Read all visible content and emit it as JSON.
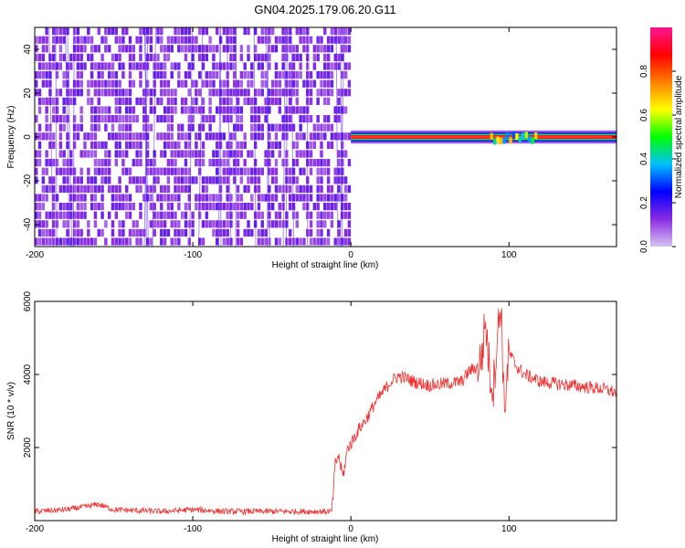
{
  "figure": {
    "title": "GN04.2025.179.06.20.G11"
  },
  "chart_data": [
    {
      "type": "heatmap",
      "xlabel": "Height of straight line (km)",
      "ylabel": "Frequency (Hz)",
      "xlim": [
        -200,
        168
      ],
      "ylim": [
        -50,
        50
      ],
      "xticks": [
        -200,
        -100,
        0,
        100
      ],
      "yticks": [
        -40,
        -20,
        0,
        20,
        40
      ],
      "grid": false,
      "colorbar": {
        "label": "Normalized spectral amplitude",
        "range": [
          0,
          1
        ],
        "ticks": [
          0.0,
          0.2,
          0.4,
          0.6,
          0.8
        ],
        "colormap": [
          "#d8c4f0",
          "#8a2be2",
          "#0000ff",
          "#00bfff",
          "#00ff00",
          "#ffff00",
          "#ff7f00",
          "#ff0000",
          "#ff1493"
        ]
      },
      "regions": [
        {
          "x_range": [
            -200,
            0
          ],
          "y_range": [
            -50,
            50
          ],
          "amplitude": 0.15,
          "pattern": "noise"
        },
        {
          "x_range": [
            0,
            168
          ],
          "y_range": [
            -2,
            2
          ],
          "amplitude": 0.9,
          "pattern": "ridge"
        }
      ],
      "ridge": {
        "x_start": 0,
        "x_end": 168,
        "frequency": 0
      }
    },
    {
      "type": "line",
      "xlabel": "Height of straight line (km)",
      "ylabel": "SNR (10 * v/v)",
      "xlim": [
        -200,
        168
      ],
      "ylim": [
        0,
        6000
      ],
      "xticks": [
        -200,
        -100,
        0,
        100
      ],
      "yticks": [
        2000,
        4000,
        6000
      ],
      "grid": false,
      "series": [
        {
          "color": "#ee3333",
          "x": [
            -200,
            -180,
            -165,
            -160,
            -150,
            -120,
            -100,
            -80,
            -50,
            -20,
            -12,
            -10,
            -8,
            -5,
            -2,
            0,
            5,
            10,
            15,
            20,
            25,
            30,
            35,
            40,
            50,
            60,
            70,
            75,
            80,
            83,
            85,
            88,
            90,
            93,
            95,
            97,
            100,
            105,
            110,
            120,
            130,
            140,
            150,
            160,
            168
          ],
          "y": [
            250,
            300,
            400,
            450,
            300,
            250,
            300,
            250,
            250,
            250,
            250,
            1500,
            1800,
            1200,
            2000,
            2100,
            2500,
            2800,
            3200,
            3500,
            3800,
            3950,
            3900,
            3800,
            3700,
            3750,
            3800,
            4100,
            4200,
            4500,
            5500,
            4000,
            3600,
            5200,
            6000,
            3000,
            4600,
            4200,
            4000,
            3800,
            3750,
            3700,
            3650,
            3600,
            3500
          ]
        }
      ],
      "noise_amplitude": 180
    }
  ]
}
